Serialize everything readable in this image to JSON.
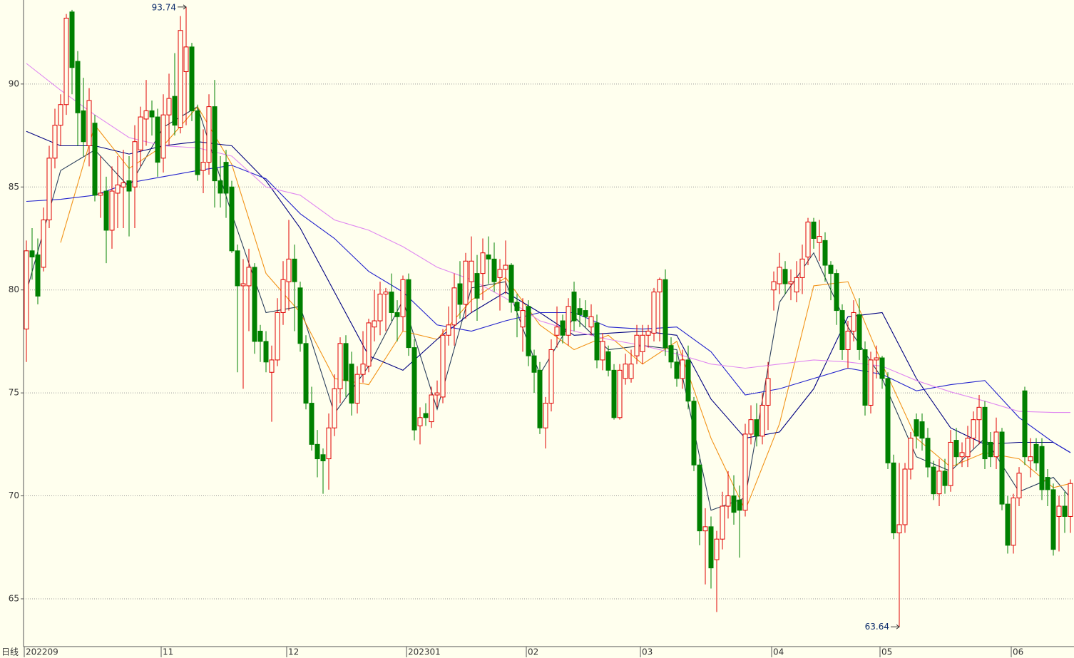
{
  "chart_data": {
    "type": "candlestick",
    "period_label": "日线",
    "ylim": [
      62.68,
      94.08
    ],
    "yticks": [
      65,
      70,
      75,
      80,
      85,
      90
    ],
    "grid": true,
    "up_color": "#e00000",
    "down_color": "#008000",
    "high_mark": 93.74,
    "low_mark": 63.64,
    "categories": [
      "202209",
      null,
      null,
      null,
      null,
      null,
      null,
      null,
      null,
      null,
      null,
      null,
      null,
      null,
      null,
      null,
      null,
      null,
      null,
      null,
      null,
      null,
      null,
      null,
      "11",
      null,
      null,
      null,
      null,
      null,
      null,
      null,
      null,
      null,
      null,
      null,
      null,
      null,
      null,
      null,
      null,
      null,
      null,
      null,
      null,
      null,
      "12",
      null,
      null,
      null,
      null,
      null,
      null,
      null,
      null,
      null,
      null,
      null,
      null,
      null,
      null,
      null,
      null,
      null,
      null,
      null,
      null,
      "202301",
      null,
      null,
      null,
      null,
      null,
      null,
      null,
      null,
      null,
      null,
      null,
      null,
      null,
      null,
      null,
      null,
      null,
      null,
      null,
      null,
      "02",
      null,
      null,
      null,
      null,
      null,
      null,
      null,
      null,
      null,
      null,
      null,
      null,
      null,
      null,
      null,
      null,
      null,
      null,
      null,
      "03",
      null,
      null,
      null,
      null,
      null,
      null,
      null,
      null,
      null,
      null,
      null,
      null,
      null,
      null,
      null,
      null,
      null,
      null,
      null,
      null,
      null,
      null,
      "04",
      null,
      null,
      null,
      null,
      null,
      null,
      null,
      null,
      null,
      null,
      null,
      null,
      null,
      null,
      null,
      null,
      null,
      null,
      "05",
      null,
      null,
      null,
      null,
      null,
      null,
      null,
      null,
      null,
      null,
      null,
      null,
      null,
      null,
      null,
      null,
      null,
      null,
      null,
      null,
      null,
      null,
      "06",
      null,
      null,
      null,
      null,
      null,
      null,
      null,
      null,
      null,
      null
    ],
    "open": [
      78.1,
      81.9,
      81.7,
      81.1,
      83.4,
      86.4,
      88.0,
      89.0,
      93.5,
      91.1,
      88.7,
      87.0,
      88.1,
      84.6,
      84.8,
      82.9,
      84.7,
      85.0,
      85.3,
      85.0,
      86.8,
      88.3,
      88.7,
      88.4,
      86.4,
      88.5,
      89.4,
      87.9,
      90.6,
      91.8,
      88.7,
      85.8,
      86.2,
      88.9,
      85.3,
      86.2,
      85.0,
      81.9,
      80.2,
      80.2,
      81.1,
      78.0,
      77.5,
      76.0,
      76.6,
      78.9,
      80.4,
      81.5,
      80.1,
      77.4,
      74.5,
      72.5,
      72.0,
      71.8,
      73.3,
      75.2,
      77.4,
      76.4,
      74.5,
      75.9,
      76.3,
      78.2,
      78.5,
      79.8,
      79.9,
      78.9,
      78.7,
      80.5,
      77.2,
      73.4,
      74.0,
      73.6,
      74.9,
      74.8,
      77.8,
      78.3,
      80.3,
      79.3,
      80.4,
      80.8,
      80.8,
      81.7,
      81.5,
      80.6,
      81.0,
      81.2,
      79.4,
      78.2,
      79.2,
      76.8,
      76.1,
      73.3,
      74.5,
      77.8,
      78.5,
      77.8,
      79.9,
      79.1,
      79.0,
      78.2,
      78.4,
      76.6,
      77.0,
      76.1,
      73.8,
      75.7,
      75.7,
      76.8,
      77.0,
      77.8,
      77.9,
      79.9,
      80.5,
      77.3,
      76.5,
      75.7,
      76.6,
      74.6,
      71.5,
      68.3,
      68.5,
      66.9,
      67.9,
      69.5,
      70.0,
      69.8,
      69.3,
      73.0,
      73.7,
      72.9,
      74.4,
      80.0,
      80.3,
      81.0,
      80.3,
      79.9,
      80.6,
      81.6,
      83.3,
      82.3,
      82.4,
      81.2,
      80.8,
      79.0,
      77.1,
      78.0,
      78.8,
      77.1,
      74.4,
      76.6,
      76.7,
      75.7,
      71.6,
      68.2,
      68.6,
      71.3,
      73.7,
      73.6,
      72.8,
      71.4,
      70.1,
      71.2,
      70.5,
      72.7,
      71.9,
      71.9,
      72.8,
      73.7,
      74.3,
      72.6,
      71.9,
      73.1,
      69.6,
      67.6,
      69.9,
      75.1,
      71.7,
      72.5,
      72.4,
      70.9,
      70.3,
      69.0,
      69.5,
      69.0
    ],
    "high": [
      82.4,
      83.0,
      82.5,
      84.0,
      87.0,
      88.8,
      89.5,
      93.4,
      93.6,
      91.6,
      90.3,
      89.8,
      88.5,
      86.5,
      85.5,
      86.0,
      86.5,
      86.8,
      86.5,
      88.0,
      88.9,
      90.2,
      89.2,
      88.8,
      89.5,
      90.5,
      91.5,
      93.3,
      93.74,
      92.0,
      89.0,
      87.8,
      89.5,
      90.2,
      86.5,
      86.8,
      85.3,
      82.2,
      81.5,
      82.0,
      81.3,
      78.3,
      78.0,
      77.3,
      79.6,
      81.4,
      83.4,
      82.2,
      80.4,
      77.8,
      75.3,
      73.2,
      72.3,
      74.0,
      75.9,
      77.7,
      77.8,
      77.0,
      76.3,
      78.0,
      78.6,
      80.0,
      80.4,
      80.1,
      80.8,
      79.5,
      80.7,
      80.8,
      77.6,
      74.3,
      74.5,
      75.3,
      75.6,
      78.1,
      79.2,
      80.8,
      81.4,
      81.8,
      82.6,
      81.7,
      82.5,
      82.6,
      82.3,
      81.5,
      82.4,
      81.3,
      79.8,
      79.6,
      79.5,
      77.1,
      76.5,
      74.8,
      77.6,
      79.2,
      78.8,
      79.6,
      80.4,
      79.6,
      79.5,
      79.3,
      78.8,
      77.9,
      77.3,
      76.4,
      76.4,
      76.9,
      77.1,
      78.3,
      78.3,
      78.3,
      80.1,
      80.6,
      81.0,
      77.7,
      77.0,
      77.1,
      77.3,
      74.8,
      71.8,
      69.4,
      69.0,
      68.3,
      70.2,
      71.2,
      71.0,
      70.5,
      73.5,
      74.4,
      74.5,
      75.0,
      76.5,
      80.9,
      81.8,
      81.4,
      81.0,
      81.4,
      82.2,
      83.5,
      83.5,
      83.4,
      82.8,
      81.4,
      81.0,
      79.3,
      78.5,
      79.5,
      79.6,
      77.5,
      77.0,
      77.3,
      76.8,
      76.0,
      72.0,
      71.6,
      71.6,
      73.1,
      74.0,
      74.0,
      73.3,
      71.7,
      71.8,
      71.8,
      73.2,
      73.3,
      72.6,
      73.4,
      74.1,
      74.9,
      74.6,
      73.1,
      73.8,
      73.3,
      70.0,
      70.1,
      71.4,
      75.3,
      72.8,
      72.8,
      72.8,
      71.3,
      70.6,
      70.0,
      70.2,
      70.8
    ],
    "low": [
      76.5,
      80.5,
      79.3,
      80.9,
      83.0,
      85.9,
      87.0,
      88.5,
      89.5,
      87.0,
      86.5,
      86.0,
      84.3,
      83.5,
      81.3,
      82.0,
      83.0,
      83.0,
      82.6,
      83.0,
      86.0,
      87.0,
      87.5,
      85.5,
      85.7,
      87.0,
      87.5,
      87.6,
      88.0,
      88.2,
      85.3,
      84.7,
      85.6,
      84.0,
      84.0,
      83.5,
      81.8,
      76.0,
      75.2,
      78.0,
      76.9,
      76.5,
      76.0,
      73.6,
      76.3,
      78.3,
      79.0,
      78.0,
      77.0,
      74.2,
      72.2,
      70.9,
      70.1,
      70.3,
      72.9,
      74.5,
      74.8,
      73.9,
      74.0,
      75.5,
      76.0,
      77.5,
      77.8,
      78.0,
      78.5,
      77.5,
      78.0,
      76.8,
      72.7,
      72.5,
      73.4,
      73.3,
      74.3,
      74.5,
      77.3,
      77.3,
      78.6,
      78.6,
      78.9,
      78.5,
      79.5,
      80.3,
      79.9,
      79.0,
      79.8,
      78.9,
      77.7,
      77.0,
      76.3,
      75.0,
      73.0,
      72.3,
      74.1,
      77.2,
      77.4,
      77.3,
      78.0,
      78.2,
      78.2,
      77.8,
      76.2,
      76.1,
      75.8,
      73.7,
      73.7,
      75.4,
      75.5,
      76.4,
      76.4,
      77.2,
      77.5,
      77.5,
      76.8,
      76.2,
      75.3,
      75.2,
      74.2,
      71.2,
      67.6,
      65.7,
      65.5,
      64.36,
      67.4,
      68.9,
      68.6,
      67.0,
      69.0,
      72.5,
      72.4,
      72.5,
      73.2,
      79.0,
      79.8,
      79.8,
      79.5,
      79.4,
      79.8,
      81.2,
      82.0,
      81.4,
      80.4,
      79.5,
      78.3,
      76.6,
      76.2,
      77.5,
      76.6,
      73.9,
      74.0,
      75.7,
      75.2,
      71.3,
      67.9,
      63.64,
      68.2,
      70.8,
      72.3,
      72.2,
      70.9,
      69.8,
      69.5,
      70.1,
      70.2,
      71.5,
      71.4,
      71.4,
      72.3,
      72.5,
      71.3,
      71.4,
      71.3,
      69.3,
      67.2,
      67.2,
      69.5,
      71.5,
      70.9,
      71.2,
      69.8,
      69.5,
      67.1,
      67.3,
      68.2,
      68.2
    ],
    "close": [
      81.9,
      81.6,
      79.7,
      83.4,
      86.4,
      88.0,
      89.0,
      93.2,
      90.8,
      88.6,
      87.2,
      89.2,
      84.6,
      84.7,
      82.9,
      84.8,
      85.1,
      85.2,
      84.8,
      87.2,
      88.4,
      88.7,
      88.4,
      86.2,
      88.5,
      89.3,
      88.0,
      92.6,
      91.8,
      88.7,
      85.6,
      86.2,
      88.9,
      85.3,
      84.7,
      84.7,
      81.9,
      80.2,
      80.3,
      81.1,
      77.5,
      77.5,
      76.5,
      76.6,
      78.9,
      80.5,
      81.5,
      80.4,
      77.4,
      74.5,
      72.5,
      71.8,
      71.7,
      73.3,
      75.2,
      77.4,
      75.6,
      74.5,
      75.9,
      76.4,
      78.4,
      78.5,
      79.8,
      79.9,
      78.9,
      78.7,
      80.5,
      77.2,
      73.2,
      73.8,
      73.8,
      74.9,
      75.0,
      77.8,
      78.3,
      80.1,
      79.3,
      81.4,
      81.4,
      79.6,
      81.8,
      81.5,
      80.4,
      81.0,
      81.2,
      79.4,
      79.0,
      79.0,
      76.8,
      76.0,
      73.3,
      74.5,
      77.1,
      78.2,
      77.8,
      79.2,
      78.5,
      78.8,
      78.7,
      78.7,
      76.6,
      77.5,
      76.1,
      73.8,
      76.1,
      76.4,
      76.4,
      77.8,
      77.8,
      78.0,
      79.9,
      80.5,
      77.2,
      76.5,
      75.7,
      76.6,
      74.6,
      71.5,
      68.3,
      68.5,
      66.5,
      67.9,
      69.5,
      70.0,
      69.2,
      69.3,
      73.0,
      73.7,
      72.9,
      74.4,
      75.7,
      80.4,
      81.1,
      80.3,
      80.4,
      80.6,
      81.5,
      83.3,
      82.5,
      82.6,
      81.2,
      80.8,
      79.0,
      77.1,
      78.0,
      78.9,
      77.1,
      74.4,
      76.6,
      76.7,
      75.7,
      71.6,
      68.2,
      68.6,
      71.3,
      72.8,
      72.9,
      72.8,
      71.4,
      70.1,
      71.2,
      70.5,
      72.6,
      71.9,
      72.1,
      72.8,
      73.7,
      74.3,
      71.8,
      71.9,
      73.1,
      69.6,
      67.6,
      69.9,
      71.1,
      71.9,
      71.9,
      71.6,
      70.3,
      70.3,
      67.4,
      69.5,
      69.0,
      70.6
    ],
    "lines": {
      "x": [
        0,
        6,
        12,
        18,
        24,
        30,
        36,
        42,
        48,
        54,
        60,
        66,
        72,
        78,
        84,
        90,
        96,
        102,
        108,
        114,
        120,
        126,
        132,
        138,
        144,
        150,
        156,
        162,
        168,
        174,
        180,
        183
      ],
      "series": [
        {
          "color": "#2b3f5c",
          "values": [
            79.9,
            85.8,
            86.8,
            85.0,
            87.9,
            88.9,
            83.7,
            78.9,
            79.2,
            74.0,
            76.3,
            79.5,
            74.2,
            80.1,
            80.4,
            75.9,
            78.7,
            77.1,
            77.3,
            77.1,
            69.3,
            69.9,
            79.4,
            81.8,
            78.2,
            75.7,
            71.9,
            71.2,
            72.8,
            70.2,
            70.9,
            69.9
          ]
        },
        {
          "color": "#f29318",
          "values": [
            null,
            82.3,
            88.0,
            85.9,
            87.0,
            88.9,
            86.1,
            80.8,
            78.9,
            75.7,
            75.4,
            78.0,
            77.6,
            79.5,
            80.6,
            78.3,
            77.1,
            77.8,
            76.4,
            77.5,
            72.8,
            69.3,
            73.5,
            80.2,
            80.4,
            76.4,
            72.8,
            71.4,
            72.1,
            71.8,
            70.4,
            70.6
          ]
        },
        {
          "color": "#000080",
          "values": [
            87.7,
            87.0,
            87.0,
            86.6,
            87.0,
            87.2,
            87.0,
            85.3,
            83.0,
            79.9,
            76.8,
            76.1,
            77.6,
            78.9,
            79.9,
            78.9,
            77.8,
            77.9,
            78.0,
            77.8,
            74.7,
            72.8,
            73.1,
            75.2,
            78.7,
            78.9,
            75.7,
            73.3,
            72.5,
            72.6,
            72.6,
            72.1
          ]
        },
        {
          "color": "#2222cc",
          "values": [
            84.3,
            84.4,
            84.6,
            85.2,
            85.5,
            85.8,
            86.05,
            85.4,
            83.7,
            82.5,
            80.9,
            79.9,
            78.3,
            78.0,
            78.5,
            78.9,
            78.9,
            78.2,
            78.1,
            78.2,
            77.0,
            74.9,
            75.2,
            75.7,
            76.2,
            75.9,
            75.1,
            75.4,
            75.6,
            73.8,
            72.6,
            72.1
          ]
        },
        {
          "color": "#e088f0",
          "values": [
            91.0,
            89.7,
            88.5,
            87.4,
            87.0,
            86.9,
            86.5,
            85.0,
            84.6,
            83.4,
            82.9,
            82.1,
            81.1,
            80.5,
            79.6,
            78.5,
            78.0,
            77.6,
            77.3,
            76.9,
            76.4,
            76.2,
            76.4,
            76.6,
            76.5,
            76.3,
            75.6,
            75.05,
            74.6,
            74.1,
            74.05,
            74.05
          ]
        }
      ]
    }
  }
}
